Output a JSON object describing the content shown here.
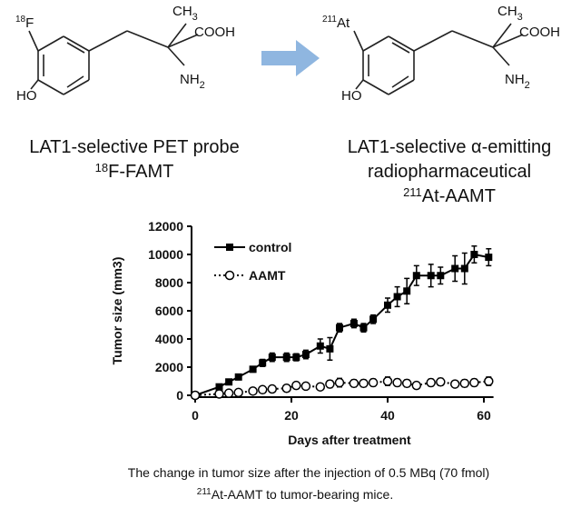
{
  "structures": [
    {
      "substituent": {
        "sup": "18",
        "main": "F"
      },
      "methyl": {
        "main": "CH",
        "sub": "3"
      },
      "acid": "COOH",
      "amine": {
        "main": "NH",
        "sub": "2"
      },
      "hydroxyl": "HO",
      "caption": [
        "LAT1-selective PET probe"
      ],
      "name": {
        "sup": "18",
        "main": "F-FAMT"
      }
    },
    {
      "substituent": {
        "sup": "211",
        "main": "At"
      },
      "methyl": {
        "main": "CH",
        "sub": "3"
      },
      "acid": "COOH",
      "amine": {
        "main": "NH",
        "sub": "2"
      },
      "hydroxyl": "HO",
      "caption": [
        "LAT1-selective α-emitting",
        "radiopharmaceutical"
      ],
      "name": {
        "sup": "211",
        "main": "At-AAMT"
      }
    }
  ],
  "chart_data": {
    "type": "line",
    "xlabel": "Days after treatment",
    "ylabel": "Tumor size (mm3)",
    "x": [
      0,
      5,
      7,
      9,
      12,
      14,
      16,
      19,
      21,
      23,
      26,
      28,
      30,
      33,
      35,
      37,
      40,
      42,
      44,
      46,
      49,
      51,
      54,
      56,
      58,
      61
    ],
    "series": [
      {
        "name": "control",
        "color": "#000000",
        "marker": "filled-square",
        "dash": "solid",
        "values": [
          0,
          600,
          950,
          1300,
          1850,
          2300,
          2700,
          2700,
          2700,
          2900,
          3500,
          3300,
          4800,
          5100,
          4800,
          5400,
          6400,
          7000,
          7400,
          8500,
          8500,
          8500,
          9000,
          9000,
          10000,
          9800
        ],
        "errors": [
          100,
          150,
          150,
          150,
          200,
          250,
          300,
          300,
          250,
          300,
          500,
          800,
          300,
          300,
          300,
          300,
          500,
          700,
          900,
          700,
          800,
          600,
          900,
          1100,
          600,
          600
        ]
      },
      {
        "name": "AAMT",
        "color": "#000000",
        "marker": "open-circle",
        "dash": "dotted",
        "values": [
          0,
          100,
          150,
          200,
          300,
          400,
          450,
          500,
          700,
          650,
          600,
          800,
          900,
          850,
          850,
          900,
          1000,
          900,
          850,
          700,
          900,
          950,
          800,
          850,
          900,
          1000
        ],
        "errors": [
          50,
          80,
          80,
          100,
          100,
          150,
          150,
          150,
          200,
          150,
          150,
          250,
          300,
          250,
          250,
          250,
          300,
          250,
          250,
          200,
          250,
          250,
          200,
          250,
          250,
          300
        ]
      }
    ],
    "xlim": [
      0,
      62
    ],
    "xticks": [
      0,
      20,
      40,
      60
    ],
    "ylim": [
      0,
      12000
    ],
    "yticks": [
      0,
      2000,
      4000,
      6000,
      8000,
      10000,
      12000
    ],
    "legend": "upper-left"
  },
  "caption": {
    "line1": "The change in tumor size after the injection of 0.5 MBq (70 fmol)",
    "line2": {
      "sup": "211",
      "main": "At-AAMT to tumor-bearing mice."
    }
  }
}
